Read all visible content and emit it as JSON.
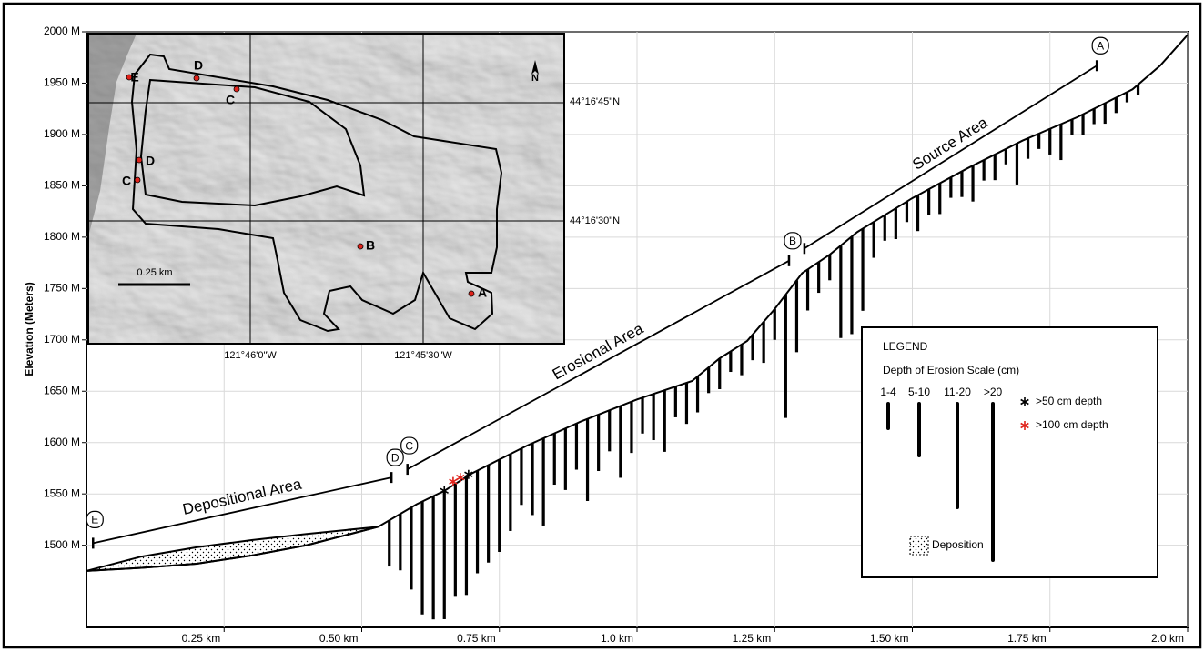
{
  "chart_data": {
    "type": "line",
    "y_label": "Elevation (Meters)",
    "color": "#000000",
    "grid": true,
    "xlim": [
      0,
      2.0
    ],
    "xticks": [
      {
        "value": 0.25,
        "label": "0.25 km"
      },
      {
        "value": 0.5,
        "label": "0.50 km"
      },
      {
        "value": 0.75,
        "label": "0.75 km"
      },
      {
        "value": 1.0,
        "label": "1.0 km"
      },
      {
        "value": 1.25,
        "label": "1.25 km"
      },
      {
        "value": 1.5,
        "label": "1.50 km"
      },
      {
        "value": 1.75,
        "label": "1.75 km"
      },
      {
        "value": 2.0,
        "label": "2.0 km"
      }
    ],
    "ylim": [
      1420,
      2000
    ],
    "yticks": [
      {
        "value": 1500,
        "label": "1500 M"
      },
      {
        "value": 1550,
        "label": "1550 M"
      },
      {
        "value": 1600,
        "label": "1600 M"
      },
      {
        "value": 1650,
        "label": "1650 M"
      },
      {
        "value": 1700,
        "label": "1700 M"
      },
      {
        "value": 1750,
        "label": "1750 M"
      },
      {
        "value": 1800,
        "label": "1800 M"
      },
      {
        "value": 1850,
        "label": "1850 M"
      },
      {
        "value": 1900,
        "label": "1900 M"
      },
      {
        "value": 1950,
        "label": "1950 M"
      },
      {
        "value": 2000,
        "label": "2000 M"
      }
    ],
    "x": [
      0,
      0.1,
      0.2,
      0.3,
      0.4,
      0.53,
      0.6,
      0.65,
      0.7,
      0.8,
      0.9,
      1.0,
      1.1,
      1.15,
      1.2,
      1.25,
      1.3,
      1.35,
      1.4,
      1.5,
      1.6,
      1.7,
      1.8,
      1.9,
      1.95,
      2.0
    ],
    "values": [
      1475,
      1478,
      1482,
      1490,
      1500,
      1518,
      1540,
      1553,
      1570,
      1597,
      1621,
      1642,
      1660,
      1682,
      1699,
      1730,
      1765,
      1783,
      1805,
      1838,
      1867,
      1894,
      1917,
      1944,
      1967,
      1997
    ],
    "deposition": {
      "x": [
        0,
        0.1,
        0.2,
        0.3,
        0.4,
        0.53
      ],
      "top": [
        1475,
        1489,
        1498,
        1505,
        1511,
        1518
      ]
    },
    "erosion": {
      "color": "#000000",
      "x": [
        0.55,
        0.57,
        0.59,
        0.61,
        0.63,
        0.65,
        0.67,
        0.69,
        0.71,
        0.73,
        0.75,
        0.77,
        0.79,
        0.81,
        0.83,
        0.85,
        0.87,
        0.89,
        0.91,
        0.93,
        0.95,
        0.97,
        0.99,
        1.01,
        1.03,
        1.05,
        1.07,
        1.09,
        1.11,
        1.13,
        1.15,
        1.17,
        1.19,
        1.21,
        1.23,
        1.25,
        1.27,
        1.29,
        1.31,
        1.33,
        1.35,
        1.37,
        1.39,
        1.41,
        1.43,
        1.45,
        1.47,
        1.49,
        1.51,
        1.53,
        1.55,
        1.57,
        1.59,
        1.61,
        1.63,
        1.65,
        1.67,
        1.69,
        1.71,
        1.73,
        1.75,
        1.77,
        1.79,
        1.81,
        1.83,
        1.85,
        1.87,
        1.89,
        1.91
      ],
      "values": [
        45,
        55,
        80,
        110,
        120,
        125,
        110,
        115,
        100,
        95,
        90,
        75,
        55,
        70,
        85,
        50,
        60,
        45,
        80,
        55,
        40,
        70,
        50,
        35,
        45,
        60,
        30,
        40,
        35,
        25,
        30,
        20,
        30,
        25,
        40,
        30,
        120,
        70,
        40,
        30,
        25,
        90,
        95,
        80,
        35,
        25,
        30,
        20,
        35,
        25,
        30,
        20,
        25,
        35,
        20,
        25,
        15,
        40,
        20,
        15,
        25,
        35,
        15,
        20,
        15,
        20,
        15,
        10,
        10
      ]
    },
    "asterisks": [
      {
        "x": 0.65,
        "y": 1553,
        "color": "#000000"
      },
      {
        "x": 0.666,
        "y": 1562,
        "color": "#e0231b"
      },
      {
        "x": 0.679,
        "y": 1566,
        "color": "#e0231b"
      },
      {
        "x": 0.694,
        "y": 1569,
        "color": "#000000"
      }
    ],
    "letter_color": "#e0231b",
    "areas": [
      {
        "name": "Depositional Area",
        "x": [
          0.012,
          0.554
        ],
        "y": [
          1502,
          1566
        ],
        "start": "E",
        "end": "D"
      },
      {
        "name": "Erosional Area",
        "x": [
          0.583,
          1.276
        ],
        "y": [
          1574,
          1777
        ],
        "start": "C",
        "end": "B"
      },
      {
        "name": "Source Area",
        "x": [
          1.304,
          1.835
        ],
        "y": [
          1789,
          1967
        ],
        "end": "A"
      }
    ],
    "legend": {
      "title": "LEGEND",
      "subtitle": "Depth of Erosion Scale (cm)",
      "classes": [
        "1-4",
        "5-10",
        "11-20",
        ">20"
      ],
      "symbols": [
        {
          "label": ">50 cm depth",
          "color": "#000000"
        },
        {
          "label": ">100 cm depth",
          "color": "#e0231b"
        }
      ],
      "deposition": "Deposition"
    }
  },
  "inset": {
    "scale_label": "0.25 km",
    "north": "N",
    "lat_labels": [
      "44°16'45\"N",
      "44°16'30\"N"
    ],
    "lon_labels": [
      "121°46'0\"W",
      "121°45'30\"W"
    ],
    "points": [
      "E",
      "D",
      "C",
      "D",
      "C",
      "B",
      "A"
    ]
  }
}
